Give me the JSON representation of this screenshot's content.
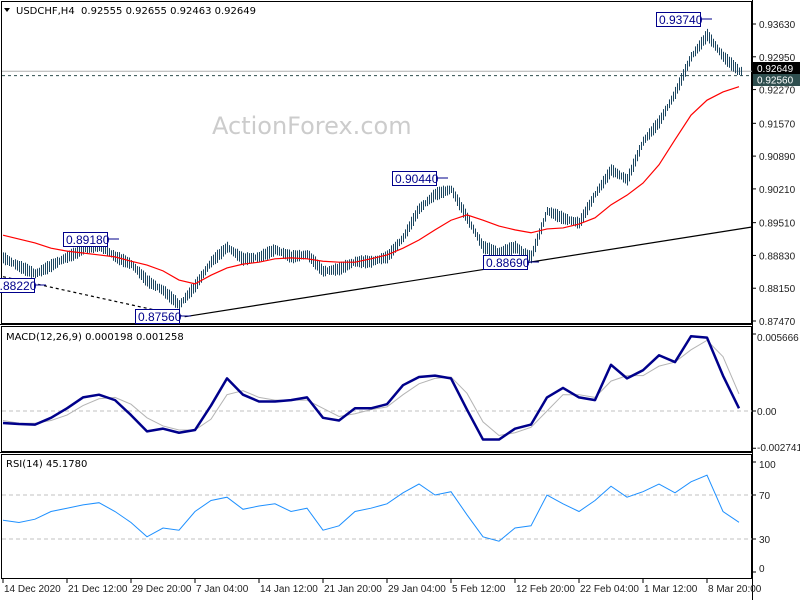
{
  "header": {
    "symbol_line": "USDCHF,H4  0.92555 0.92655 0.92463 0.92649",
    "menu_icon": "triangle-down-icon"
  },
  "watermark": "ActionForex.com",
  "colors": {
    "bars": "#1c4660",
    "ma": "#ff0000",
    "macd_main": "#00008b",
    "macd_signal": "#b4b4b4",
    "rsi": "#1e90ff",
    "label_border": "#00008b",
    "current_price_bg": "#2f4f4f"
  },
  "chart_data": [
    {
      "type": "bar",
      "panel": "price",
      "title": "USDCHF,H4",
      "ohlc_last": {
        "open": 0.92555,
        "high": 0.92655,
        "low": 0.92463,
        "close": 0.92649
      },
      "ylim": [
        0.8747,
        0.94
      ],
      "y_ticks": [
        "0.93630",
        "0.92950",
        "0.92270",
        "0.91570",
        "0.90890",
        "0.90210",
        "0.89510",
        "0.88830",
        "0.88150",
        "0.87470"
      ],
      "y_tick_values": [
        0.9363,
        0.9295,
        0.9227,
        0.9157,
        0.9089,
        0.9021,
        0.8951,
        0.8883,
        0.8815,
        0.8747
      ],
      "current_price": "0.92560",
      "last_close_label": "0.92649",
      "x": [
        "2020-12-14 00:00",
        "2020-12-15 21:00",
        "2020-12-17 18:00",
        "2020-12-19 15:00",
        "2020-12-21 12:00",
        "2020-12-23 14:00",
        "2020-12-25 16:00",
        "2020-12-27 18:00",
        "2020-12-29 20:00",
        "2020-12-31 22:00",
        "2021-01-03 00:00",
        "2021-01-05 02:00",
        "2021-01-07 04:00",
        "2021-01-09 00:00",
        "2021-01-10 20:00",
        "2021-01-12 16:00",
        "2021-01-14 12:00",
        "2021-01-16 08:00",
        "2021-01-18 04:00",
        "2021-01-20 00:00",
        "2021-01-21 20:00",
        "2021-01-23 16:00",
        "2021-01-25 12:00",
        "2021-01-27 08:00",
        "2021-01-29 04:00",
        "2021-01-31 00:00",
        "2021-02-01 20:00",
        "2021-02-03 16:00",
        "2021-02-05 12:00",
        "2021-02-07 08:00",
        "2021-02-09 04:00",
        "2021-02-11 00:00",
        "2021-02-12 20:00",
        "2021-02-15 04:00",
        "2021-02-17 12:00",
        "2021-02-19 20:00",
        "2021-02-22 04:00",
        "2021-02-24 00:00",
        "2021-02-25 20:00",
        "2021-02-27 16:00",
        "2021-03-01 12:00",
        "2021-03-03 08:00",
        "2021-03-05 04:00",
        "2021-03-07 00:00",
        "2021-03-08 20:00",
        "2021-03-10 16:00",
        "2021-03-12 12:00"
      ],
      "close": [
        0.8878,
        0.886,
        0.8845,
        0.8862,
        0.888,
        0.8895,
        0.8905,
        0.888,
        0.8865,
        0.883,
        0.881,
        0.878,
        0.882,
        0.887,
        0.89,
        0.8875,
        0.888,
        0.8895,
        0.888,
        0.8885,
        0.885,
        0.8855,
        0.887,
        0.887,
        0.888,
        0.892,
        0.898,
        0.901,
        0.902,
        0.896,
        0.89,
        0.889,
        0.89,
        0.888,
        0.8975,
        0.896,
        0.895,
        0.901,
        0.906,
        0.904,
        0.912,
        0.916,
        0.922,
        0.9295,
        0.934,
        0.9295,
        0.9265
      ],
      "moving_average": [
        0.8925,
        0.8917,
        0.8909,
        0.8898,
        0.8892,
        0.8888,
        0.8884,
        0.888,
        0.8871,
        0.8863,
        0.8851,
        0.8832,
        0.8824,
        0.8842,
        0.8857,
        0.8865,
        0.8869,
        0.8876,
        0.8878,
        0.8876,
        0.8871,
        0.8869,
        0.8869,
        0.8876,
        0.8884,
        0.8898,
        0.8915,
        0.8936,
        0.8956,
        0.8967,
        0.8956,
        0.8944,
        0.8936,
        0.893,
        0.8938,
        0.894,
        0.8948,
        0.8961,
        0.8988,
        0.9008,
        0.9033,
        0.9071,
        0.9123,
        0.9174,
        0.9205,
        0.9222,
        0.9233
      ],
      "annotations": [
        {
          "text": "0.93740",
          "value": 0.9374
        },
        {
          "text": "0.89180",
          "value": 0.8918
        },
        {
          "text": "0.88220",
          "value": 0.8822
        },
        {
          "text": "0.87560",
          "value": 0.8756
        },
        {
          "text": "0.90440",
          "value": 0.9044
        },
        {
          "text": "0.88690",
          "value": 0.8869
        }
      ],
      "trendlines": [
        {
          "style": "solid",
          "from": [
            "2020-12-31 12:00",
            0.8756
          ],
          "to": [
            "2021-03-12 12:00",
            0.8942
          ]
        },
        {
          "style": "dashed",
          "from": [
            "2020-12-14 00:00",
            0.8839
          ],
          "to": [
            "2020-12-31 12:00",
            0.8756
          ]
        }
      ]
    },
    {
      "type": "line",
      "panel": "macd",
      "title": "MACD(12,26,9) 0.000198 0.001258",
      "ylim": [
        -0.002741,
        0.005666
      ],
      "y_ticks": [
        "0.005666",
        "0.00",
        "-0.002741"
      ],
      "series": [
        {
          "values": [
            -0.00088,
            -0.00096,
            -0.001,
            -0.0005,
            0.0002,
            0.001,
            0.0012,
            0.0008,
            -0.0003,
            -0.0015,
            -0.0013,
            -0.0016,
            -0.0014,
            0.0004,
            0.0024,
            0.0012,
            0.0007,
            0.0007,
            0.0008,
            0.001,
            -0.0005,
            -0.0007,
            0.0002,
            0.0002,
            0.0005,
            0.0019,
            0.0025,
            0.0026,
            0.0024,
            0.0001,
            -0.0021,
            -0.0021,
            -0.0013,
            -0.001,
            0.001,
            0.0017,
            0.001,
            0.0008,
            0.0034,
            0.0024,
            0.003,
            0.0041,
            0.0036,
            0.0055,
            0.0054,
            0.0026,
            0.000198
          ]
        },
        {
          "values": [
            -0.0007,
            -0.0009,
            -0.0009,
            -0.0007,
            -0.0003,
            0.0004,
            0.0009,
            0.001,
            0.0005,
            -0.0005,
            -0.0011,
            -0.0014,
            -0.0014,
            -0.0006,
            0.0012,
            0.0015,
            0.001,
            0.0008,
            0.0008,
            0.0008,
            0.0002,
            -0.0004,
            -0.0002,
            0.0001,
            0.0003,
            0.0012,
            0.002,
            0.0024,
            0.0025,
            0.0013,
            -0.0008,
            -0.0018,
            -0.0016,
            -0.0012,
            0.0,
            0.0012,
            0.0012,
            0.001,
            0.0022,
            0.0026,
            0.0026,
            0.0033,
            0.0036,
            0.0045,
            0.0052,
            0.004,
            0.001258
          ]
        }
      ]
    },
    {
      "type": "line",
      "panel": "rsi",
      "title": "RSI(14) 45.1780",
      "ylim": [
        0,
        100
      ],
      "y_ticks": [
        "100",
        "70",
        "30",
        "0"
      ],
      "levels": [
        70,
        30
      ],
      "series": [
        {
          "values": [
            47,
            45,
            48,
            55,
            58,
            61,
            63,
            55,
            45,
            32,
            40,
            38,
            55,
            65,
            68,
            57,
            60,
            62,
            55,
            58,
            38,
            42,
            55,
            58,
            62,
            72,
            80,
            70,
            73,
            52,
            32,
            28,
            40,
            42,
            70,
            62,
            55,
            65,
            78,
            68,
            73,
            80,
            72,
            82,
            88,
            55,
            45.178
          ]
        }
      ]
    }
  ],
  "x_axis": {
    "ticks": [
      "14 Dec 2020",
      "21 Dec 12:00",
      "29 Dec 20:00",
      "7 Jan 04:00",
      "14 Jan 12:00",
      "21 Jan 20:00",
      "29 Jan 04:00",
      "5 Feb 12:00",
      "12 Feb 20:00",
      "22 Feb 04:00",
      "1 Mar 12:00",
      "8 Mar 20:00"
    ]
  }
}
